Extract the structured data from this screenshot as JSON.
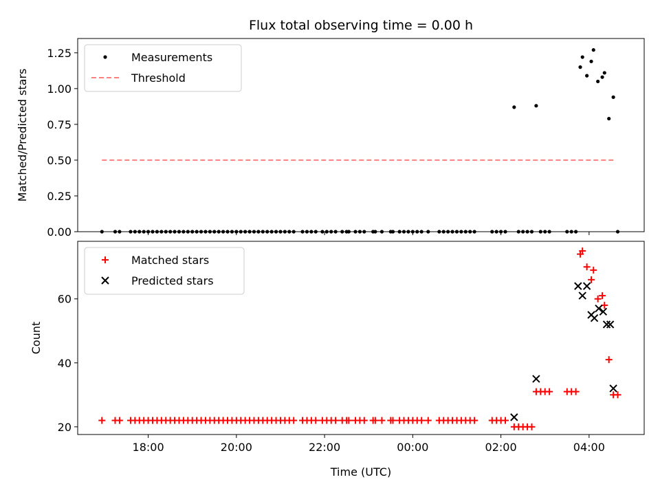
{
  "chart_data": [
    {
      "type": "scatter",
      "title": "Flux total observing time = 0.00 h",
      "xlabel": "",
      "ylabel": "Matched/Predicted stars",
      "xlim": [
        -7.6,
        5.25
      ],
      "ylim": [
        0,
        1.35
      ],
      "yticks": [
        0,
        0.25,
        0.5,
        0.75,
        1.0,
        1.25
      ],
      "ytick_labels": [
        "0.00",
        "0.25",
        "0.50",
        "0.75",
        "1.00",
        "1.25"
      ],
      "xticks": [
        -6,
        -4,
        -2,
        0,
        2,
        4
      ],
      "legend": {
        "position": "top-left",
        "entries": [
          "Measurements",
          "Threshold"
        ]
      },
      "threshold": {
        "name": "Threshold",
        "y": 0.5,
        "x": [
          -7.05,
          4.6
        ],
        "color": "#ff7f7f"
      },
      "series": [
        {
          "name": "Measurements",
          "marker": "dot",
          "color": "#000000",
          "x": [
            -7.05,
            -6.75,
            -6.65,
            -6.4,
            -6.3,
            -6.2,
            -6.1,
            -6.0,
            -5.9,
            -5.8,
            -5.7,
            -5.6,
            -5.5,
            -5.4,
            -5.3,
            -5.2,
            -5.1,
            -5.0,
            -4.9,
            -4.8,
            -4.7,
            -4.6,
            -4.5,
            -4.4,
            -4.3,
            -4.2,
            -4.1,
            -4.0,
            -3.9,
            -3.8,
            -3.7,
            -3.6,
            -3.5,
            -3.4,
            -3.3,
            -3.2,
            -3.1,
            -3.0,
            -2.9,
            -2.8,
            -2.7,
            -2.5,
            -2.4,
            -2.3,
            -2.2,
            -2.05,
            -1.95,
            -1.85,
            -1.75,
            -1.6,
            -1.5,
            -1.45,
            -1.3,
            -1.2,
            -1.1,
            -0.9,
            -0.85,
            -0.7,
            -0.5,
            -0.45,
            -0.3,
            -0.2,
            -0.1,
            0.0,
            0.1,
            0.2,
            0.35,
            0.6,
            0.7,
            0.8,
            0.9,
            1.0,
            1.1,
            1.2,
            1.3,
            1.4,
            1.8,
            1.9,
            2.0,
            2.1,
            2.3,
            2.4,
            2.5,
            2.6,
            2.7,
            2.8,
            2.9,
            3.0,
            3.1,
            3.5,
            3.6,
            3.7,
            3.8,
            3.85,
            3.95,
            4.05,
            4.1,
            4.2,
            4.3,
            4.35,
            4.45,
            4.55,
            4.65
          ],
          "y": [
            0,
            0,
            0,
            0,
            0,
            0,
            0,
            0,
            0,
            0,
            0,
            0,
            0,
            0,
            0,
            0,
            0,
            0,
            0,
            0,
            0,
            0,
            0,
            0,
            0,
            0,
            0,
            0,
            0,
            0,
            0,
            0,
            0,
            0,
            0,
            0,
            0,
            0,
            0,
            0,
            0,
            0,
            0,
            0,
            0,
            0,
            0,
            0,
            0,
            0,
            0,
            0,
            0,
            0,
            0,
            0,
            0,
            0,
            0,
            0,
            0,
            0,
            0,
            0,
            0,
            0,
            0,
            0,
            0,
            0,
            0,
            0,
            0,
            0,
            0,
            0,
            0,
            0,
            0,
            0,
            0.87,
            0,
            0,
            0,
            0,
            0.88,
            0,
            0,
            0,
            0,
            0,
            0,
            1.15,
            1.22,
            1.09,
            1.19,
            1.27,
            1.05,
            1.08,
            1.11,
            0.79,
            0.94,
            0
          ]
        }
      ]
    },
    {
      "type": "scatter",
      "title": "",
      "xlabel": "Time (UTC)",
      "ylabel": "Count",
      "xlim": [
        -7.6,
        5.25
      ],
      "ylim": [
        17.6,
        78
      ],
      "yticks": [
        20,
        40,
        60
      ],
      "ytick_labels": [
        "20",
        "40",
        "60"
      ],
      "xticks": [
        -6,
        -4,
        -2,
        0,
        2,
        4
      ],
      "xtick_labels": [
        "18:00",
        "20:00",
        "22:00",
        "00:00",
        "02:00",
        "04:00"
      ],
      "legend": {
        "position": "top-left",
        "entries": [
          "Matched stars",
          "Predicted stars"
        ]
      },
      "series": [
        {
          "name": "Matched stars",
          "marker": "plus",
          "color": "#ff0000",
          "x": [
            -7.05,
            -6.75,
            -6.65,
            -6.4,
            -6.3,
            -6.2,
            -6.1,
            -6.0,
            -5.9,
            -5.8,
            -5.7,
            -5.6,
            -5.5,
            -5.4,
            -5.3,
            -5.2,
            -5.1,
            -5.0,
            -4.9,
            -4.8,
            -4.7,
            -4.6,
            -4.5,
            -4.4,
            -4.3,
            -4.2,
            -4.1,
            -4.0,
            -3.9,
            -3.8,
            -3.7,
            -3.6,
            -3.5,
            -3.4,
            -3.3,
            -3.2,
            -3.1,
            -3.0,
            -2.9,
            -2.8,
            -2.7,
            -2.5,
            -2.4,
            -2.3,
            -2.2,
            -2.05,
            -1.95,
            -1.85,
            -1.75,
            -1.6,
            -1.5,
            -1.45,
            -1.3,
            -1.2,
            -1.1,
            -0.9,
            -0.85,
            -0.7,
            -0.5,
            -0.45,
            -0.3,
            -0.2,
            -0.1,
            0.0,
            0.1,
            0.2,
            0.35,
            0.6,
            0.7,
            0.8,
            0.9,
            1.0,
            1.1,
            1.2,
            1.3,
            1.4,
            1.8,
            1.9,
            2.0,
            2.1,
            2.3,
            2.4,
            2.5,
            2.6,
            2.7,
            2.8,
            2.9,
            3.0,
            3.1,
            3.5,
            3.6,
            3.7,
            3.8,
            3.85,
            3.95,
            4.05,
            4.1,
            4.2,
            4.3,
            4.35,
            4.45,
            4.55,
            4.65
          ],
          "y": [
            22,
            22,
            22,
            22,
            22,
            22,
            22,
            22,
            22,
            22,
            22,
            22,
            22,
            22,
            22,
            22,
            22,
            22,
            22,
            22,
            22,
            22,
            22,
            22,
            22,
            22,
            22,
            22,
            22,
            22,
            22,
            22,
            22,
            22,
            22,
            22,
            22,
            22,
            22,
            22,
            22,
            22,
            22,
            22,
            22,
            22,
            22,
            22,
            22,
            22,
            22,
            22,
            22,
            22,
            22,
            22,
            22,
            22,
            22,
            22,
            22,
            22,
            22,
            22,
            22,
            22,
            22,
            22,
            22,
            22,
            22,
            22,
            22,
            22,
            22,
            22,
            22,
            22,
            22,
            22,
            20,
            20,
            20,
            20,
            20,
            31,
            31,
            31,
            31,
            31,
            31,
            31,
            74,
            75,
            70,
            66,
            69,
            60,
            61,
            58,
            41,
            30,
            30
          ]
        },
        {
          "name": "Predicted stars",
          "marker": "x",
          "color": "#000000",
          "x": [
            2.3,
            2.8,
            3.75,
            3.85,
            3.95,
            4.05,
            4.12,
            4.22,
            4.32,
            4.4,
            4.48,
            4.55
          ],
          "y": [
            23,
            35,
            64,
            61,
            64,
            55,
            54,
            57,
            56,
            52,
            52,
            32
          ]
        }
      ]
    }
  ]
}
